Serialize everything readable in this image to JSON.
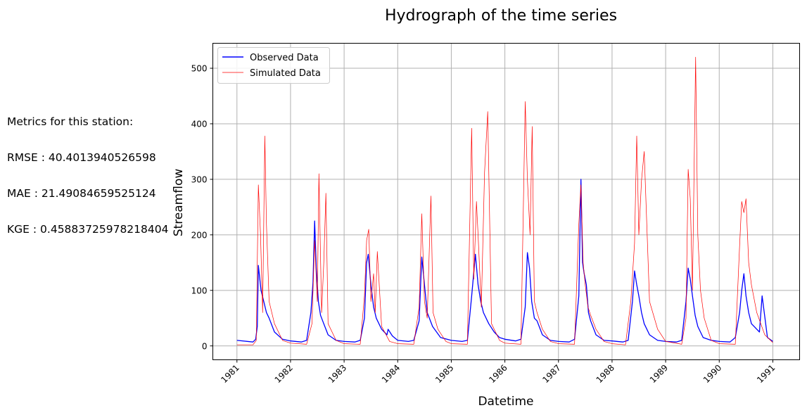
{
  "metrics": {
    "heading": "Metrics for this station:",
    "rmse": "RMSE : 40.4013940526598",
    "mae": "MAE : 21.49084659525124",
    "kge": "KGE : 0.45883725978218404"
  },
  "chart_data": {
    "type": "line",
    "title": "Hydrograph of the time series",
    "xlabel": "Datetime",
    "ylabel": "Streamflow",
    "xlim": [
      1980.55,
      1991.5
    ],
    "ylim": [
      -25,
      545
    ],
    "grid": true,
    "legend_position": "top-left",
    "x_ticks": [
      1981,
      1982,
      1983,
      1984,
      1985,
      1986,
      1987,
      1988,
      1989,
      1990,
      1991
    ],
    "x_tick_labels": [
      "1981",
      "1982",
      "1983",
      "1984",
      "1985",
      "1986",
      "1987",
      "1988",
      "1989",
      "1990",
      "1991"
    ],
    "y_ticks": [
      0,
      100,
      200,
      300,
      400,
      500
    ],
    "y_tick_labels": [
      "0",
      "100",
      "200",
      "300",
      "400",
      "500"
    ],
    "series": [
      {
        "name": "Observed Data",
        "color": "#0000ff",
        "x": [
          1981.0,
          1981.3,
          1981.35,
          1981.38,
          1981.4,
          1981.45,
          1981.5,
          1981.55,
          1981.6,
          1981.7,
          1981.85,
          1982.0,
          1982.2,
          1982.3,
          1982.38,
          1982.42,
          1982.45,
          1982.48,
          1982.52,
          1982.56,
          1982.6,
          1982.7,
          1982.85,
          1983.0,
          1983.2,
          1983.3,
          1983.38,
          1983.42,
          1983.45,
          1983.5,
          1983.55,
          1983.6,
          1983.7,
          1983.8,
          1983.82,
          1983.9,
          1984.0,
          1984.2,
          1984.3,
          1984.4,
          1984.45,
          1984.5,
          1984.55,
          1984.65,
          1984.8,
          1985.0,
          1985.2,
          1985.3,
          1985.38,
          1985.45,
          1985.5,
          1985.55,
          1985.6,
          1985.7,
          1985.8,
          1985.9,
          1986.0,
          1986.2,
          1986.3,
          1986.38,
          1986.42,
          1986.46,
          1986.5,
          1986.55,
          1986.6,
          1986.7,
          1986.85,
          1987.0,
          1987.2,
          1987.3,
          1987.38,
          1987.42,
          1987.45,
          1987.48,
          1987.52,
          1987.56,
          1987.6,
          1987.7,
          1987.85,
          1988.0,
          1988.2,
          1988.3,
          1988.38,
          1988.42,
          1988.46,
          1988.5,
          1988.55,
          1988.6,
          1988.7,
          1988.85,
          1989.0,
          1989.2,
          1989.3,
          1989.38,
          1989.42,
          1989.46,
          1989.5,
          1989.55,
          1989.6,
          1989.7,
          1989.85,
          1990.0,
          1990.2,
          1990.3,
          1990.38,
          1990.42,
          1990.46,
          1990.5,
          1990.55,
          1990.6,
          1990.65,
          1990.7,
          1990.75,
          1990.8,
          1990.9,
          1991.0
        ],
        "y": [
          10,
          7,
          12,
          35,
          145,
          100,
          80,
          60,
          50,
          25,
          12,
          9,
          7,
          10,
          60,
          115,
          225,
          140,
          80,
          55,
          45,
          20,
          10,
          8,
          7,
          10,
          50,
          150,
          165,
          110,
          70,
          50,
          30,
          20,
          30,
          18,
          10,
          8,
          10,
          45,
          160,
          110,
          60,
          35,
          15,
          10,
          8,
          10,
          90,
          165,
          110,
          80,
          60,
          40,
          25,
          15,
          12,
          9,
          12,
          70,
          168,
          140,
          80,
          50,
          45,
          20,
          10,
          8,
          7,
          12,
          90,
          300,
          150,
          130,
          110,
          60,
          45,
          20,
          10,
          9,
          7,
          10,
          80,
          135,
          110,
          90,
          60,
          40,
          20,
          10,
          8,
          7,
          10,
          80,
          140,
          120,
          90,
          55,
          35,
          15,
          10,
          8,
          7,
          15,
          60,
          100,
          130,
          90,
          60,
          40,
          35,
          30,
          25,
          90,
          15,
          8
        ]
      },
      {
        "name": "Simulated Data",
        "color": "#ff0000",
        "x": [
          1981.0,
          1981.3,
          1981.36,
          1981.4,
          1981.44,
          1981.48,
          1981.52,
          1981.55,
          1981.6,
          1981.7,
          1981.85,
          1982.0,
          1982.3,
          1982.4,
          1982.45,
          1982.5,
          1982.53,
          1982.58,
          1982.62,
          1982.66,
          1982.7,
          1982.85,
          1983.0,
          1983.3,
          1983.38,
          1983.42,
          1983.46,
          1983.5,
          1983.55,
          1983.58,
          1983.62,
          1983.7,
          1983.85,
          1984.0,
          1984.3,
          1984.4,
          1984.45,
          1984.5,
          1984.55,
          1984.62,
          1984.66,
          1984.75,
          1984.9,
          1985.0,
          1985.3,
          1985.38,
          1985.42,
          1985.47,
          1985.5,
          1985.56,
          1985.62,
          1985.68,
          1985.75,
          1985.9,
          1986.0,
          1986.3,
          1986.38,
          1986.42,
          1986.47,
          1986.51,
          1986.55,
          1986.6,
          1986.7,
          1986.85,
          1987.0,
          1987.3,
          1987.38,
          1987.42,
          1987.46,
          1987.5,
          1987.55,
          1987.6,
          1987.7,
          1987.85,
          1988.0,
          1988.25,
          1988.35,
          1988.42,
          1988.46,
          1988.5,
          1988.55,
          1988.6,
          1988.7,
          1988.85,
          1989.0,
          1989.3,
          1989.38,
          1989.42,
          1989.46,
          1989.5,
          1989.56,
          1989.6,
          1989.65,
          1989.72,
          1989.85,
          1990.0,
          1990.3,
          1990.38,
          1990.42,
          1990.46,
          1990.5,
          1990.55,
          1990.6,
          1990.7,
          1990.85,
          1991.0
        ],
        "y": [
          2,
          2,
          10,
          290,
          200,
          60,
          378,
          220,
          80,
          40,
          10,
          5,
          3,
          40,
          190,
          80,
          310,
          60,
          150,
          275,
          40,
          10,
          4,
          3,
          90,
          190,
          210,
          80,
          130,
          60,
          170,
          35,
          8,
          4,
          3,
          70,
          238,
          80,
          50,
          270,
          60,
          30,
          8,
          4,
          3,
          392,
          120,
          260,
          200,
          70,
          312,
          422,
          40,
          10,
          5,
          3,
          440,
          300,
          200,
          395,
          80,
          60,
          30,
          8,
          4,
          3,
          220,
          290,
          150,
          110,
          70,
          55,
          30,
          8,
          4,
          2,
          80,
          185,
          378,
          200,
          298,
          350,
          80,
          30,
          8,
          3,
          50,
          318,
          265,
          100,
          520,
          200,
          100,
          50,
          10,
          4,
          3,
          180,
          260,
          240,
          265,
          150,
          110,
          60,
          20,
          6
        ]
      }
    ]
  }
}
